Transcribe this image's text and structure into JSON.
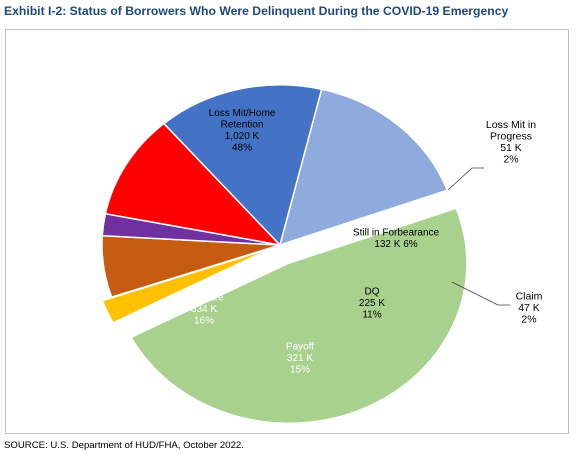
{
  "title": "Exhibit I-2: Status of Borrowers Who Were Delinquent During the COVID-19 Emergency",
  "source": "SOURCE: U.S. Department of HUD/FHA, October 2022.",
  "chart_data": {
    "type": "pie",
    "title": "Exhibit I-2: Status of Borrowers Who Were Delinquent During the COVID-19 Emergency",
    "units": "K",
    "exploded_slices": [
      "Loss Mit/Home Retention",
      "Loss Mit in Progress"
    ],
    "slices": [
      {
        "name": "Loss Mit/Home Retention",
        "value": 1020,
        "percent": 48,
        "color": "#a9d18e",
        "label_lines": [
          "Loss Mit/Home",
          "Retention",
          "1,020 K",
          "48%"
        ]
      },
      {
        "name": "Loss Mit in Progress",
        "value": 51,
        "percent": 2,
        "color": "#ffc000",
        "label_lines": [
          "Loss Mit in",
          "Progress",
          "51 K",
          "2%"
        ]
      },
      {
        "name": "Still in Forbearance",
        "value": 132,
        "percent": 6,
        "color": "#c55a11",
        "label_lines": [
          "Still in Forbearance",
          "132 K 6%"
        ]
      },
      {
        "name": "Claim",
        "value": 47,
        "percent": 2,
        "color": "#7030a0",
        "label_lines": [
          "Claim",
          "47 K",
          "2%"
        ]
      },
      {
        "name": "DQ",
        "value": 225,
        "percent": 11,
        "color": "#ff0000",
        "label_lines": [
          "DQ",
          "225 K",
          "11%"
        ]
      },
      {
        "name": "Payoff",
        "value": 321,
        "percent": 15,
        "color": "#4472c4",
        "label_lines": [
          "Payoff",
          "321 K",
          "15%"
        ]
      },
      {
        "name": "Self cure",
        "value": 334,
        "percent": 16,
        "color": "#8faadc",
        "label_lines": [
          "Self cure",
          "334 K",
          "16%"
        ]
      }
    ]
  }
}
